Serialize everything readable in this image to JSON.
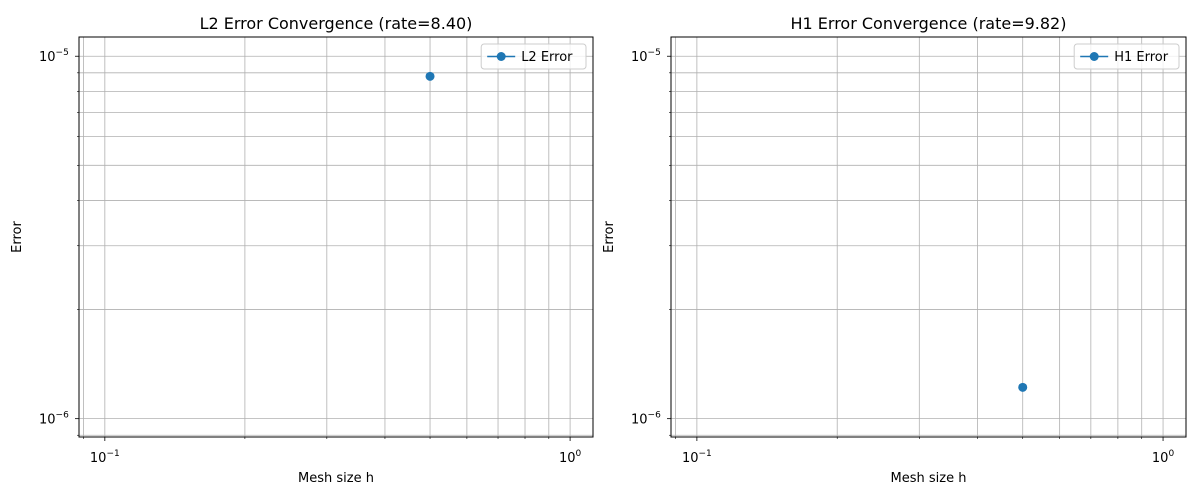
{
  "chart_data": [
    {
      "type": "line",
      "title": "L2 Error Convergence (rate=8.40)",
      "xlabel": "Mesh size h",
      "ylabel": "Error",
      "xscale": "log",
      "yscale": "log",
      "xlim": [
        0.088,
        1.12
      ],
      "ylim": [
        8.9e-07,
        1.13e-05
      ],
      "grid": true,
      "grid_which": "both",
      "legend": "upper right",
      "x_ticks": [
        {
          "value": 0.1,
          "label": "10",
          "exp": "−1"
        },
        {
          "value": 1.0,
          "label": "10",
          "exp": "0"
        }
      ],
      "y_ticks": [
        {
          "value": 1e-06,
          "label": "10",
          "exp": "−6"
        },
        {
          "value": 1e-05,
          "label": "10",
          "exp": "−5"
        }
      ],
      "series": [
        {
          "name": "L2 Error",
          "color": "#1f77b4",
          "marker": "circle",
          "x": [
            0.5
          ],
          "y": [
            8.8e-06
          ]
        }
      ]
    },
    {
      "type": "line",
      "title": "H1 Error Convergence (rate=9.82)",
      "xlabel": "Mesh size h",
      "ylabel": "Error",
      "xscale": "log",
      "yscale": "log",
      "xlim": [
        0.088,
        1.12
      ],
      "ylim": [
        8.9e-07,
        1.13e-05
      ],
      "grid": true,
      "grid_which": "both",
      "legend": "upper right",
      "x_ticks": [
        {
          "value": 0.1,
          "label": "10",
          "exp": "−1"
        },
        {
          "value": 1.0,
          "label": "10",
          "exp": "0"
        }
      ],
      "y_ticks": [
        {
          "value": 1e-06,
          "label": "10",
          "exp": "−6"
        },
        {
          "value": 1e-05,
          "label": "10",
          "exp": "−5"
        }
      ],
      "series": [
        {
          "name": "H1 Error",
          "color": "#1f77b4",
          "marker": "circle",
          "x": [
            0.5
          ],
          "y": [
            1.22e-06
          ]
        }
      ]
    }
  ]
}
